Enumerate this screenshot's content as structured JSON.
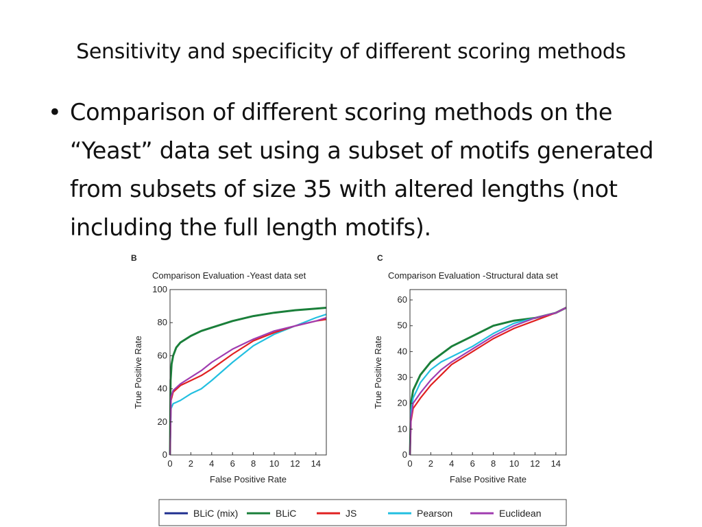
{
  "slide": {
    "title": "Sensitivity and specificity of different scoring methods",
    "bullet": "Comparison of different scoring methods on the “Yeast” data set using a subset of motifs generated from subsets of size 35 with altered lengths (not including the full length motifs)."
  },
  "colors": {
    "BLiC (mix)": "#1f2f8f",
    "BLiC": "#1a7f3a",
    "JS": "#e02020",
    "Pearson": "#22bfe0",
    "Euclidean": "#a03cb0"
  },
  "legend": [
    "BLiC (mix)",
    "BLiC",
    "JS",
    "Pearson",
    "Euclidean"
  ],
  "chart_data": [
    {
      "type": "line",
      "panel": "B",
      "title": "Comparison Evaluation -Yeast data set",
      "xlabel": "False Positive Rate",
      "ylabel": "True Positive Rate",
      "xlim": [
        0,
        15
      ],
      "ylim": [
        0,
        100
      ],
      "xticks": [
        0,
        2,
        4,
        6,
        8,
        10,
        12,
        14
      ],
      "yticks": [
        0,
        20,
        40,
        60,
        80,
        100
      ],
      "series": [
        {
          "name": "BLiC",
          "x": [
            0,
            0.05,
            0.15,
            0.3,
            0.6,
            1,
            2,
            3,
            4,
            6,
            8,
            10,
            12,
            14,
            15
          ],
          "y": [
            0,
            45,
            55,
            60,
            65,
            68,
            72,
            75,
            77,
            81,
            84,
            86,
            87.5,
            88.5,
            89
          ]
        },
        {
          "name": "Pearson",
          "x": [
            0,
            0.1,
            0.3,
            1,
            2,
            3,
            4,
            6,
            8,
            10,
            12,
            14,
            15
          ],
          "y": [
            0,
            28,
            31,
            33,
            37,
            40,
            45,
            56,
            66,
            73,
            78,
            83,
            85
          ]
        },
        {
          "name": "JS",
          "x": [
            0,
            0.1,
            0.3,
            1,
            2,
            3,
            4,
            6,
            8,
            10,
            12,
            14,
            15
          ],
          "y": [
            0,
            33,
            38,
            42,
            45,
            48,
            52,
            61,
            69,
            74,
            78,
            81,
            82
          ]
        },
        {
          "name": "Euclidean",
          "x": [
            0,
            0.1,
            0.3,
            1,
            2,
            3,
            4,
            6,
            8,
            10,
            12,
            14,
            15
          ],
          "y": [
            0,
            35,
            39,
            43,
            47,
            51,
            56,
            64,
            70,
            75,
            78,
            81,
            83
          ]
        }
      ]
    },
    {
      "type": "line",
      "panel": "C",
      "title": "Comparison Evaluation -Structural data set",
      "xlabel": "False Positive Rate",
      "ylabel": "True Positive Rate",
      "xlim": [
        0,
        15
      ],
      "ylim": [
        0,
        64
      ],
      "xticks": [
        0,
        2,
        4,
        6,
        8,
        10,
        12,
        14
      ],
      "yticks": [
        0,
        10,
        20,
        30,
        40,
        50,
        60
      ],
      "series": [
        {
          "name": "BLiC",
          "x": [
            0,
            0.1,
            0.3,
            1,
            2,
            3,
            4,
            6,
            8,
            10,
            12,
            14,
            15
          ],
          "y": [
            0,
            20,
            25,
            31,
            36,
            39,
            42,
            46,
            50,
            52,
            53,
            55,
            57
          ]
        },
        {
          "name": "Pearson",
          "x": [
            0,
            0.1,
            0.3,
            1,
            2,
            3,
            4,
            6,
            8,
            10,
            12,
            14,
            15
          ],
          "y": [
            0,
            17,
            22,
            28,
            33,
            36,
            38,
            42,
            47,
            51,
            53,
            55,
            57
          ]
        },
        {
          "name": "JS",
          "x": [
            0,
            0.1,
            0.3,
            1,
            2,
            3,
            4,
            6,
            8,
            10,
            12,
            14,
            15
          ],
          "y": [
            0,
            13,
            18,
            22,
            27,
            31,
            35,
            40,
            45,
            49,
            52,
            55,
            57
          ]
        },
        {
          "name": "Euclidean",
          "x": [
            0,
            0.1,
            0.3,
            1,
            2,
            3,
            4,
            6,
            8,
            10,
            12,
            14,
            15
          ],
          "y": [
            0,
            14,
            20,
            24,
            29,
            33,
            36,
            41,
            46,
            50,
            53,
            55,
            57
          ]
        }
      ]
    }
  ]
}
